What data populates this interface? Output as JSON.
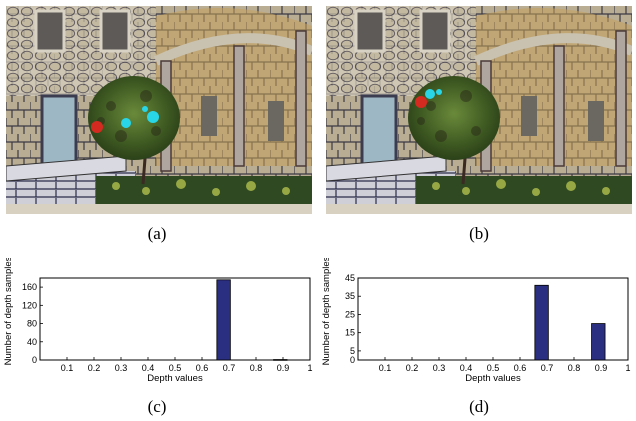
{
  "captions": {
    "a": "(a)",
    "b": "(b)",
    "c": "(c)",
    "d": "(d)"
  },
  "chart_data": [
    {
      "id": "c",
      "type": "bar",
      "xlabel": "Depth values",
      "ylabel": "Number of depth samples",
      "xlim": [
        0,
        1
      ],
      "ylim": [
        0,
        180
      ],
      "xticks": [
        "0.1",
        "0.2",
        "0.3",
        "0.4",
        "0.5",
        "0.6",
        "0.7",
        "0.8",
        "0.9",
        "1"
      ],
      "yticks": [
        "0",
        "40",
        "80",
        "120",
        "160"
      ],
      "bars": [
        {
          "x": 0.68,
          "value": 176
        },
        {
          "x": 0.89,
          "value": 1
        }
      ],
      "bar_color": "#2b2f82",
      "grid": false
    },
    {
      "id": "d",
      "type": "bar",
      "xlabel": "Depth values",
      "ylabel": "Number of depth samples",
      "xlim": [
        0,
        1
      ],
      "ylim": [
        0,
        45
      ],
      "xticks": [
        "0.1",
        "0.2",
        "0.3",
        "0.4",
        "0.5",
        "0.6",
        "0.7",
        "0.8",
        "0.9",
        "1"
      ],
      "yticks": [
        "0",
        "5",
        "15",
        "25",
        "35",
        "45"
      ],
      "bars": [
        {
          "x": 0.68,
          "value": 41
        },
        {
          "x": 0.89,
          "value": 20
        }
      ],
      "bar_color": "#2b2f82",
      "grid": false
    }
  ]
}
